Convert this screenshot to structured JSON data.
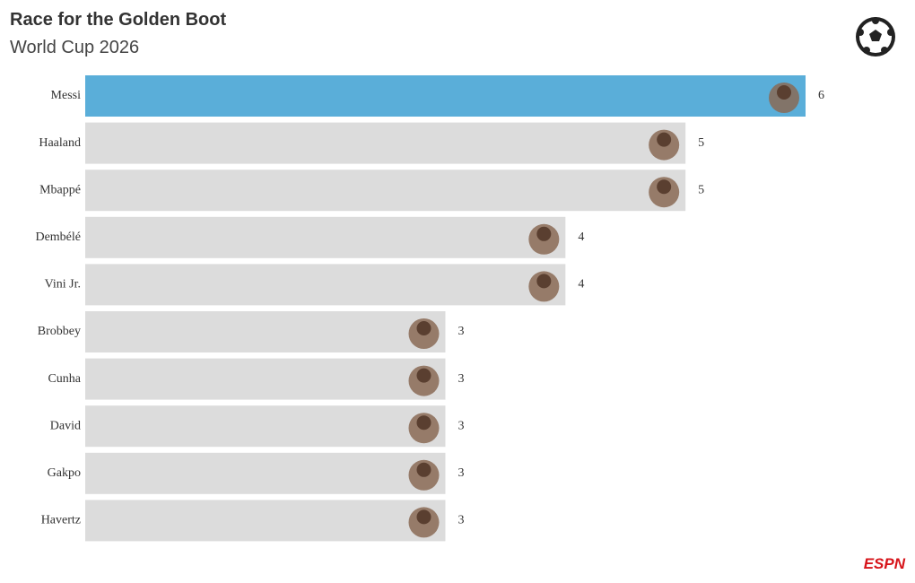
{
  "chart_data": {
    "type": "bar",
    "orientation": "horizontal",
    "title": "Race for the Golden Boot",
    "subtitle": "World Cup 2026",
    "categories": [
      "Messi",
      "Haaland",
      "Mbappé",
      "Dembélé",
      "Vini Jr.",
      "Brobbey",
      "Cunha",
      "David",
      "Gakpo",
      "Havertz"
    ],
    "values": [
      6,
      5,
      5,
      4,
      4,
      3,
      3,
      3,
      3,
      3
    ],
    "colors": [
      "#5aaed9",
      "#dcdcdc",
      "#dcdcdc",
      "#dcdcdc",
      "#dcdcdc",
      "#dcdcdc",
      "#dcdcdc",
      "#dcdcdc",
      "#dcdcdc",
      "#dcdcdc"
    ],
    "logo": "ESPN"
  }
}
